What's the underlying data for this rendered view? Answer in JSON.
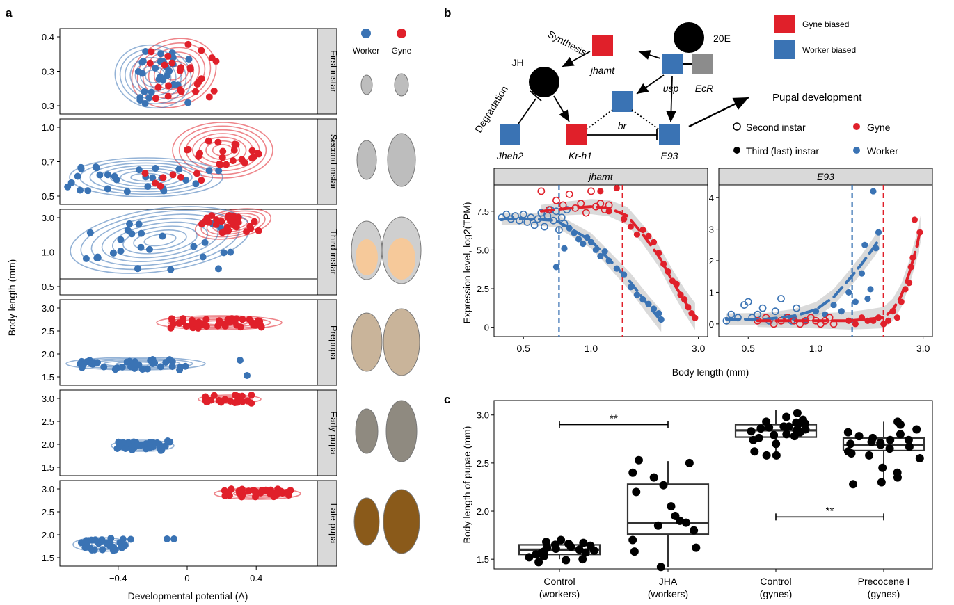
{
  "panel_letters": {
    "a": "a",
    "b": "b",
    "c": "c"
  },
  "colors": {
    "gyne": "#e0202a",
    "worker": "#3a73b4",
    "gray": "#8c8c8c",
    "strip": "#d9d9d9"
  },
  "panel_a": {
    "ylabel": "Body length (mm)",
    "xlabel": "Developmental potential (Δ)",
    "xticks": [
      "−0.4",
      "0",
      "0.4"
    ],
    "legend": [
      "Worker",
      "Gyne"
    ],
    "stages": [
      {
        "name": "First instar",
        "yticks": [
          "0.4",
          "0.3",
          "0.3"
        ]
      },
      {
        "name": "Second instar",
        "yticks": [
          "1.0",
          "0.7",
          "0.5"
        ]
      },
      {
        "name": "Third instar",
        "yticks": [
          "3.0",
          "1.0",
          "0.5"
        ]
      },
      {
        "name": "Prepupa",
        "yticks": [
          "3.0",
          "2.5",
          "2.0",
          "1.5"
        ]
      },
      {
        "name": "Early pupa",
        "yticks": [
          "3.0",
          "2.5",
          "2.0",
          "1.5"
        ]
      },
      {
        "name": "Late pupa",
        "yticks": [
          "3.0",
          "2.5",
          "2.0",
          "1.5"
        ]
      }
    ]
  },
  "panel_b": {
    "nodes": {
      "jh": "JH",
      "e20": "20E",
      "jhamt": "jhamt",
      "usp": "usp",
      "ecr": "EcR",
      "br": "br",
      "jheh2": "Jheh2",
      "krh1": "Kr-h1",
      "e93": "E93"
    },
    "labels": {
      "synthesis": "Synthesis",
      "degradation": "Degradation",
      "pupal": "Pupal development"
    },
    "bias_legend": [
      "Gyne biased",
      "Worker biased"
    ],
    "point_legend": [
      "Second instar",
      "Third (last) instar",
      "Gyne",
      "Worker"
    ],
    "ylabel": "Expression level, log2(TPM)",
    "xlabel": "Body length (mm)",
    "xticks": [
      "0.5",
      "1.0",
      "3.0"
    ]
  },
  "chart_data": [
    {
      "type": "scatter",
      "title": "jhamt",
      "xlabel": "Body length (mm)",
      "ylabel": "Expression level, log2(TPM)",
      "x_scale": "log",
      "ylim": [
        -0.6,
        9.2
      ],
      "yticks": [
        "0",
        "2.5",
        "5.0",
        "7.5"
      ],
      "vlines": [
        {
          "x": 0.72,
          "series": "Worker"
        },
        {
          "x": 1.38,
          "series": "Gyne"
        }
      ],
      "series": [
        {
          "name": "Worker",
          "instar": "Second instar",
          "points": [
            [
              0.4,
              7.1
            ],
            [
              0.42,
              7.3
            ],
            [
              0.44,
              7.0
            ],
            [
              0.46,
              7.2
            ],
            [
              0.48,
              6.9
            ],
            [
              0.5,
              7.3
            ],
            [
              0.52,
              6.8
            ],
            [
              0.54,
              7.1
            ],
            [
              0.56,
              6.6
            ],
            [
              0.58,
              7.0
            ],
            [
              0.6,
              7.4
            ],
            [
              0.62,
              6.5
            ],
            [
              0.64,
              7.2
            ],
            [
              0.66,
              7.6
            ],
            [
              0.68,
              6.9
            ],
            [
              0.7,
              7.5
            ],
            [
              0.72,
              6.3
            ],
            [
              0.74,
              7.1
            ],
            [
              0.76,
              6.7
            ],
            [
              0.78,
              7.6
            ]
          ]
        },
        {
          "name": "Worker",
          "instar": "Third (last) instar",
          "points": [
            [
              0.7,
              3.9
            ],
            [
              0.76,
              5.1
            ],
            [
              0.8,
              6.4
            ],
            [
              0.84,
              6.1
            ],
            [
              0.88,
              5.7
            ],
            [
              0.92,
              5.4
            ],
            [
              0.96,
              5.8
            ],
            [
              1.0,
              5.5
            ],
            [
              1.05,
              5.0
            ],
            [
              1.1,
              4.6
            ],
            [
              1.15,
              4.9
            ],
            [
              1.2,
              4.3
            ],
            [
              1.3,
              3.8
            ],
            [
              1.4,
              3.4
            ],
            [
              1.5,
              2.6
            ],
            [
              1.6,
              2.1
            ],
            [
              1.7,
              1.8
            ],
            [
              1.8,
              1.5
            ],
            [
              1.9,
              1.2
            ],
            [
              2.0,
              0.9
            ],
            [
              2.05,
              0.5
            ]
          ]
        },
        {
          "name": "Gyne",
          "instar": "Second instar",
          "points": [
            [
              0.6,
              8.8
            ],
            [
              0.65,
              7.6
            ],
            [
              0.7,
              8.2
            ],
            [
              0.75,
              7.9
            ],
            [
              0.8,
              8.6
            ],
            [
              0.85,
              7.7
            ],
            [
              0.9,
              8.0
            ],
            [
              0.95,
              7.4
            ],
            [
              1.0,
              8.8
            ],
            [
              1.05,
              7.8
            ],
            [
              1.1,
              8.0
            ],
            [
              1.15,
              7.6
            ],
            [
              1.2,
              7.9
            ]
          ]
        },
        {
          "name": "Gyne",
          "instar": "Third (last) instar",
          "points": [
            [
              1.1,
              8.8
            ],
            [
              1.2,
              7.5
            ],
            [
              1.3,
              9.0
            ],
            [
              1.4,
              7.0
            ],
            [
              1.5,
              6.5
            ],
            [
              1.6,
              6.0
            ],
            [
              1.7,
              6.3
            ],
            [
              1.8,
              5.9
            ],
            [
              1.9,
              5.5
            ],
            [
              2.0,
              4.8
            ],
            [
              2.1,
              4.1
            ],
            [
              2.2,
              3.6
            ],
            [
              2.3,
              3.0
            ],
            [
              2.4,
              2.8
            ],
            [
              2.5,
              2.1
            ],
            [
              2.6,
              1.8
            ],
            [
              2.7,
              1.3
            ],
            [
              2.8,
              0.9
            ],
            [
              2.9,
              0.6
            ]
          ]
        }
      ],
      "trends": [
        {
          "name": "Worker",
          "points": [
            [
              0.4,
              7.0
            ],
            [
              0.55,
              7.0
            ],
            [
              0.7,
              6.9
            ],
            [
              0.85,
              6.2
            ],
            [
              1.0,
              5.6
            ],
            [
              1.2,
              4.4
            ],
            [
              1.5,
              2.9
            ],
            [
              1.8,
              1.4
            ],
            [
              2.05,
              0.4
            ]
          ]
        },
        {
          "name": "Gyne",
          "points": [
            [
              0.6,
              7.5
            ],
            [
              0.8,
              7.7
            ],
            [
              1.0,
              7.8
            ],
            [
              1.2,
              7.7
            ],
            [
              1.45,
              7.2
            ],
            [
              1.7,
              6.0
            ],
            [
              2.0,
              4.6
            ],
            [
              2.3,
              3.0
            ],
            [
              2.6,
              1.7
            ],
            [
              2.9,
              0.7
            ]
          ]
        }
      ]
    },
    {
      "type": "scatter",
      "title": "E93",
      "xlabel": "Body length (mm)",
      "ylabel": "Expression level, log2(TPM)",
      "x_scale": "log",
      "ylim": [
        -0.4,
        4.4
      ],
      "yticks": [
        "0",
        "1",
        "2",
        "3",
        "4"
      ],
      "vlines": [
        {
          "x": 1.45,
          "series": "Worker"
        },
        {
          "x": 2.0,
          "series": "Gyne"
        }
      ],
      "series": [
        {
          "name": "Worker",
          "instar": "Second instar",
          "points": [
            [
              0.4,
              0.1
            ],
            [
              0.42,
              0.3
            ],
            [
              0.45,
              0.2
            ],
            [
              0.48,
              0.6
            ],
            [
              0.5,
              0.7
            ],
            [
              0.52,
              0.2
            ],
            [
              0.55,
              0.3
            ],
            [
              0.58,
              0.5
            ],
            [
              0.62,
              0.1
            ],
            [
              0.66,
              0.4
            ],
            [
              0.7,
              0.8
            ],
            [
              0.74,
              0.2
            ],
            [
              0.78,
              0.1
            ],
            [
              0.82,
              0.5
            ]
          ]
        },
        {
          "name": "Worker",
          "instar": "Third (last) instar",
          "points": [
            [
              0.8,
              0.2
            ],
            [
              0.9,
              0.1
            ],
            [
              1.0,
              0.4
            ],
            [
              1.1,
              0.3
            ],
            [
              1.2,
              0.6
            ],
            [
              1.3,
              0.4
            ],
            [
              1.4,
              1.0
            ],
            [
              1.5,
              0.7
            ],
            [
              1.6,
              1.6
            ],
            [
              1.65,
              2.5
            ],
            [
              1.7,
              0.8
            ],
            [
              1.75,
              1.1
            ],
            [
              1.8,
              4.2
            ],
            [
              1.85,
              2.4
            ],
            [
              1.9,
              2.9
            ]
          ]
        },
        {
          "name": "Gyne",
          "instar": "Second instar",
          "points": [
            [
              0.55,
              0.1
            ],
            [
              0.6,
              0.2
            ],
            [
              0.65,
              0.0
            ],
            [
              0.7,
              0.1
            ],
            [
              0.75,
              0.2
            ],
            [
              0.8,
              0.1
            ],
            [
              0.85,
              0.0
            ],
            [
              0.9,
              0.1
            ],
            [
              0.95,
              0.2
            ],
            [
              1.0,
              0.1
            ],
            [
              1.05,
              0.0
            ],
            [
              1.1,
              0.1
            ],
            [
              1.15,
              0.2
            ],
            [
              1.2,
              0.0
            ]
          ]
        },
        {
          "name": "Gyne",
          "instar": "Third (last) instar",
          "points": [
            [
              1.4,
              0.1
            ],
            [
              1.5,
              0.0
            ],
            [
              1.6,
              0.2
            ],
            [
              1.7,
              0.1
            ],
            [
              1.8,
              0.1
            ],
            [
              1.9,
              0.2
            ],
            [
              2.0,
              0.0
            ],
            [
              2.1,
              0.1
            ],
            [
              2.2,
              0.4
            ],
            [
              2.3,
              0.2
            ],
            [
              2.4,
              0.7
            ],
            [
              2.5,
              1.1
            ],
            [
              2.6,
              1.3
            ],
            [
              2.65,
              1.8
            ],
            [
              2.7,
              2.1
            ],
            [
              2.75,
              3.3
            ],
            [
              2.9,
              2.9
            ]
          ]
        }
      ],
      "trends": [
        {
          "name": "Worker",
          "points": [
            [
              0.4,
              0.15
            ],
            [
              0.6,
              0.15
            ],
            [
              0.8,
              0.25
            ],
            [
              1.0,
              0.45
            ],
            [
              1.2,
              0.85
            ],
            [
              1.4,
              1.4
            ],
            [
              1.6,
              1.9
            ],
            [
              1.8,
              2.4
            ],
            [
              1.92,
              2.7
            ]
          ]
        },
        {
          "name": "Gyne",
          "points": [
            [
              0.55,
              0.1
            ],
            [
              0.8,
              0.1
            ],
            [
              1.1,
              0.1
            ],
            [
              1.4,
              0.1
            ],
            [
              1.7,
              0.15
            ],
            [
              2.0,
              0.2
            ],
            [
              2.2,
              0.45
            ],
            [
              2.4,
              0.9
            ],
            [
              2.6,
              1.6
            ],
            [
              2.8,
              2.4
            ],
            [
              2.92,
              3.0
            ]
          ]
        }
      ]
    },
    {
      "type": "box",
      "ylabel": "Body length of pupae (mm)",
      "ylim": [
        1.4,
        3.15
      ],
      "yticks": [
        "1.5",
        "2.0",
        "2.5",
        "3.0"
      ],
      "categories": [
        "Control\n(workers)",
        "JHA\n(workers)",
        "Control\n(gynes)",
        "Precocene I\n(gynes)"
      ],
      "boxes": [
        {
          "q1": 1.55,
          "median": 1.6,
          "q3": 1.65,
          "lo": 1.5,
          "hi": 1.7
        },
        {
          "q1": 1.76,
          "median": 1.88,
          "q3": 2.28,
          "lo": 1.42,
          "hi": 2.52
        },
        {
          "q1": 2.77,
          "median": 2.84,
          "q3": 2.9,
          "lo": 2.58,
          "hi": 3.05
        },
        {
          "q1": 2.63,
          "median": 2.69,
          "q3": 2.76,
          "lo": 2.3,
          "hi": 2.93
        }
      ],
      "points": [
        [
          1.63,
          1.64,
          1.58,
          1.52,
          1.47,
          1.6,
          1.55,
          1.68,
          1.5,
          1.62,
          1.66,
          1.57,
          1.59,
          1.7,
          1.53,
          1.61,
          1.65,
          1.49,
          1.56,
          1.67
        ],
        [
          2.53,
          2.5,
          2.4,
          2.35,
          2.27,
          2.05,
          1.95,
          1.9,
          1.88,
          1.85,
          1.8,
          1.7,
          1.58,
          1.42,
          1.62,
          2.2
        ],
        [
          3.02,
          2.98,
          2.95,
          2.93,
          2.92,
          2.9,
          2.88,
          2.88,
          2.86,
          2.85,
          2.84,
          2.82,
          2.8,
          2.79,
          2.78,
          2.76,
          2.74,
          2.7,
          2.62,
          2.58,
          2.58,
          2.91,
          2.87,
          2.83
        ],
        [
          2.93,
          2.9,
          2.85,
          2.82,
          2.8,
          2.78,
          2.76,
          2.74,
          2.72,
          2.7,
          2.69,
          2.67,
          2.65,
          2.62,
          2.6,
          2.58,
          2.55,
          2.45,
          2.4,
          2.35,
          2.3,
          2.28,
          2.74,
          2.71
        ]
      ],
      "significance": [
        {
          "between": [
            0,
            1
          ],
          "label": "**",
          "y": 2.9
        },
        {
          "between": [
            2,
            3
          ],
          "label": "**",
          "y": 1.94
        }
      ]
    }
  ]
}
